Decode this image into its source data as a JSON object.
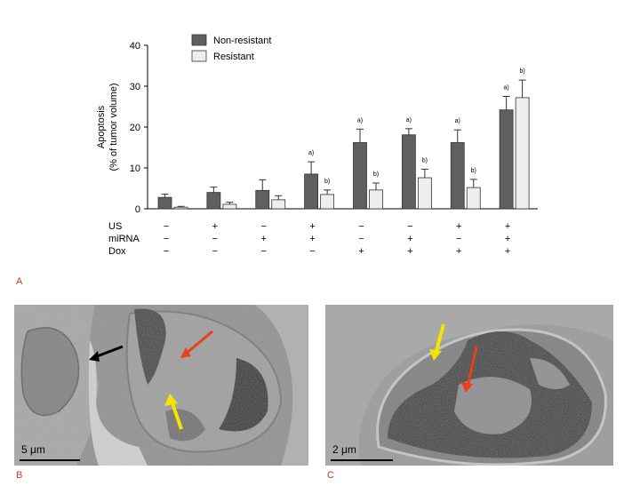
{
  "chart_data": {
    "type": "bar",
    "ylabel_line1": "Apoptosis",
    "ylabel_line2": "(% of tumor volume)",
    "ylim": [
      0,
      40
    ],
    "yticks": [
      "0",
      "10",
      "20",
      "30",
      "40"
    ],
    "legend_position": "top",
    "series": [
      {
        "name": "Non-resistant",
        "color": "#5f5f5f",
        "values": [
          2.8,
          4.0,
          4.5,
          8.5,
          16.2,
          18.1,
          16.2,
          24.2
        ],
        "errors": [
          0.8,
          1.3,
          2.6,
          3.0,
          3.3,
          1.5,
          3.1,
          3.3
        ],
        "annotations": [
          "",
          "",
          "",
          "a)",
          "a)",
          "a)",
          "a)",
          "a)"
        ]
      },
      {
        "name": "Resistant",
        "color": "#eeeeee",
        "values": [
          0.4,
          1.1,
          2.2,
          3.5,
          4.6,
          7.6,
          5.2,
          27.2
        ],
        "errors": [
          0.2,
          0.5,
          1.0,
          1.1,
          1.7,
          2.1,
          2.0,
          4.3
        ],
        "annotations": [
          "",
          "",
          "",
          "b)",
          "b)",
          "b)",
          "b)",
          "b)"
        ]
      }
    ],
    "conditions": {
      "rows": [
        {
          "label": "US",
          "values": [
            "−",
            "+",
            "−",
            "+",
            "−",
            "−",
            "+",
            "+"
          ]
        },
        {
          "label": "miRNA",
          "values": [
            "−",
            "−",
            "+",
            "+",
            "−",
            "+",
            "−",
            "+"
          ]
        },
        {
          "label": "Dox",
          "values": [
            "−",
            "−",
            "−",
            "−",
            "+",
            "+",
            "+",
            "+"
          ]
        }
      ]
    }
  },
  "panels": {
    "a": "A",
    "b": "B",
    "c": "C"
  },
  "micrographs": {
    "b_scale": "5 μm",
    "c_scale": "2 μm"
  }
}
